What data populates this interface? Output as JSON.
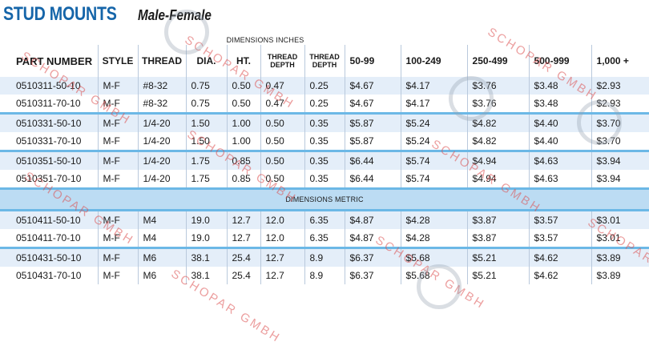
{
  "title": {
    "main": "STUD MOUNTS",
    "sub": "Male-Female"
  },
  "dimension_labels": {
    "inches": "DIMENSIONS INCHES",
    "metric": "DIMENSIONS METRIC"
  },
  "headers": {
    "part_number": "PART NUMBER",
    "style": "STYLE",
    "thread": "THREAD",
    "dia": "DIA.",
    "ht": "HT.",
    "thread_depth_1": "THREAD\nDEPTH",
    "thread_depth_2": "THREAD\nDEPTH",
    "price_breaks": [
      "50-99",
      "100-249",
      "250-499",
      "500-999",
      "1,000 +"
    ]
  },
  "inch_rows": [
    [
      "0510311-50-10",
      "M-F",
      "#8-32",
      "0.75",
      "0.50",
      "0.47",
      "0.25",
      "$4.67",
      "$4.17",
      "$3.76",
      "$3.48",
      "$2.93"
    ],
    [
      "0510311-70-10",
      "M-F",
      "#8-32",
      "0.75",
      "0.50",
      "0.47",
      "0.25",
      "$4.67",
      "$4.17",
      "$3.76",
      "$3.48",
      "$2.93"
    ],
    [
      "0510331-50-10",
      "M-F",
      "1/4-20",
      "1.50",
      "1.00",
      "0.50",
      "0.35",
      "$5.87",
      "$5.24",
      "$4.82",
      "$4.40",
      "$3.70"
    ],
    [
      "0510331-70-10",
      "M-F",
      "1/4-20",
      "1.50",
      "1.00",
      "0.50",
      "0.35",
      "$5.87",
      "$5.24",
      "$4.82",
      "$4.40",
      "$3.70"
    ],
    [
      "0510351-50-10",
      "M-F",
      "1/4-20",
      "1.75",
      "0.85",
      "0.50",
      "0.35",
      "$6.44",
      "$5.74",
      "$4.94",
      "$4.63",
      "$3.94"
    ],
    [
      "0510351-70-10",
      "M-F",
      "1/4-20",
      "1.75",
      "0.85",
      "0.50",
      "0.35",
      "$6.44",
      "$5.74",
      "$4.94",
      "$4.63",
      "$3.94"
    ]
  ],
  "metric_rows": [
    [
      "0510411-50-10",
      "M-F",
      "M4",
      "19.0",
      "12.7",
      "12.0",
      "6.35",
      "$4.87",
      "$4.28",
      "$3.87",
      "$3.57",
      "$3.01"
    ],
    [
      "0510411-70-10",
      "M-F",
      "M4",
      "19.0",
      "12.7",
      "12.0",
      "6.35",
      "$4.87",
      "$4.28",
      "$3.87",
      "$3.57",
      "$3.01"
    ],
    [
      "0510431-50-10",
      "M-F",
      "M6",
      "38.1",
      "25.4",
      "12.7",
      "8.9",
      "$6.37",
      "$5.68",
      "$5.21",
      "$4.62",
      "$3.89"
    ],
    [
      "0510431-70-10",
      "M-F",
      "M6",
      "38.1",
      "25.4",
      "12.7",
      "8.9",
      "$6.37",
      "$5.68",
      "$5.21",
      "$4.62",
      "$3.89"
    ]
  ],
  "watermark": {
    "text": "SCHOPAR GMBH"
  },
  "colors": {
    "title_blue": "#1565a9",
    "row_shade": "#e4eef9",
    "metric_bar": "#bcdcf3",
    "separator": "#6cb8e6",
    "watermark": "#dc5050"
  }
}
